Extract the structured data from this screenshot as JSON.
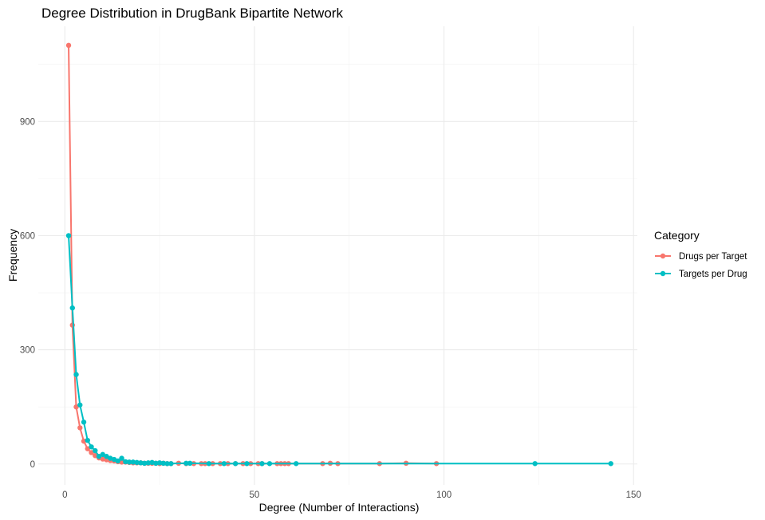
{
  "chart_data": {
    "type": "line",
    "title": "Degree Distribution in DrugBank Bipartite Network",
    "xlabel": "Degree (Number of Interactions)",
    "ylabel": "Frequency",
    "xlim": [
      -7,
      151
    ],
    "ylim": [
      -55,
      1150
    ],
    "x_ticks": [
      0,
      50,
      100,
      150
    ],
    "y_ticks": [
      0,
      300,
      600,
      900
    ],
    "x_tick_labels": [
      "0",
      "50",
      "100",
      "150"
    ],
    "y_tick_labels": [
      "0",
      "300",
      "600",
      "900"
    ],
    "grid": true,
    "legend": {
      "title": "Category",
      "position": "right"
    },
    "series": [
      {
        "name": "Drugs per Target",
        "color": "#F8766D",
        "x": [
          1,
          2,
          3,
          4,
          5,
          6,
          7,
          8,
          9,
          10,
          11,
          12,
          13,
          14,
          15,
          16,
          17,
          18,
          19,
          20,
          21,
          22,
          23,
          24,
          25,
          26,
          27,
          28,
          30,
          32,
          34,
          36,
          37,
          39,
          41,
          43,
          45,
          47,
          49,
          51,
          52,
          56,
          57,
          58,
          59,
          68,
          70,
          72,
          83,
          90,
          98
        ],
        "y": [
          1100,
          365,
          150,
          95,
          60,
          40,
          30,
          22,
          16,
          13,
          11,
          9,
          8,
          6,
          5,
          5,
          4,
          3,
          3,
          3,
          2,
          2,
          2,
          2,
          1,
          2,
          1,
          1,
          2,
          1,
          1,
          1,
          1,
          1,
          1,
          1,
          1,
          1,
          1,
          1,
          1,
          1,
          1,
          1,
          1,
          1,
          2,
          1,
          1,
          2,
          1
        ]
      },
      {
        "name": "Targets per Drug",
        "color": "#00BFC4",
        "x": [
          1,
          2,
          3,
          4,
          5,
          6,
          7,
          8,
          9,
          10,
          11,
          12,
          13,
          14,
          15,
          16,
          17,
          18,
          19,
          20,
          21,
          22,
          23,
          24,
          25,
          26,
          27,
          28,
          32,
          33,
          38,
          42,
          45,
          48,
          52,
          54,
          61,
          124,
          144
        ],
        "y": [
          600,
          410,
          235,
          155,
          110,
          62,
          45,
          35,
          20,
          25,
          20,
          15,
          12,
          8,
          15,
          6,
          5,
          5,
          4,
          3,
          2,
          3,
          4,
          2,
          3,
          2,
          1,
          1,
          2,
          2,
          1,
          1,
          1,
          1,
          1,
          1,
          1,
          1,
          1
        ]
      }
    ]
  }
}
